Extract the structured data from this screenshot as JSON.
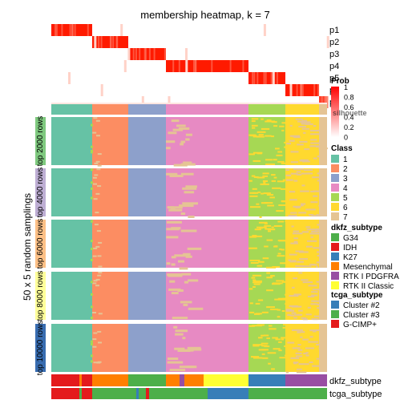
{
  "chart_data": {
    "type": "heatmap",
    "title": "membership heatmap, k = 7",
    "ylabel": "50 x 5 random samplings",
    "k": 7,
    "prob_rows": [
      "p1",
      "p2",
      "p3",
      "p4",
      "p5",
      "p6",
      "p7"
    ],
    "class_blocks": [
      {
        "cls": "1",
        "x0": 64,
        "x1": 115
      },
      {
        "cls": "2",
        "x0": 115,
        "x1": 160
      },
      {
        "cls": "3",
        "x0": 160,
        "x1": 207
      },
      {
        "cls": "4",
        "x0": 207,
        "x1": 310
      },
      {
        "cls": "5",
        "x0": 310,
        "x1": 356
      },
      {
        "cls": "6",
        "x0": 356,
        "x1": 398
      },
      {
        "cls": "7",
        "x0": 398,
        "x1": 408
      }
    ],
    "row_groups": [
      {
        "label": "top 2000 rows",
        "color": "#7FC97F"
      },
      {
        "label": "top 4000 rows",
        "color": "#BEAED4"
      },
      {
        "label": "top 6000 rows",
        "color": "#FDC086"
      },
      {
        "label": "top 8000 rows",
        "color": "#FFFF99"
      },
      {
        "label": "top 10000 rows",
        "color": "#386CB0"
      }
    ],
    "legends": {
      "prob": {
        "title": "Prob",
        "ticks": [
          "1",
          "0.8",
          "0.6",
          "0.4",
          "0.2",
          "0"
        ]
      },
      "silhouette": {
        "title": "silhouette",
        "ticks": [
          "1",
          "0.8",
          "0.6",
          "0.4",
          "0.2",
          "0"
        ]
      },
      "class": {
        "title": "Class",
        "items": [
          {
            "label": "1",
            "color": "#66C2A5"
          },
          {
            "label": "2",
            "color": "#FC8D62"
          },
          {
            "label": "3",
            "color": "#8DA0CB"
          },
          {
            "label": "4",
            "color": "#E78AC3"
          },
          {
            "label": "5",
            "color": "#A6D854"
          },
          {
            "label": "6",
            "color": "#FFD92F"
          },
          {
            "label": "7",
            "color": "#E5C494"
          }
        ]
      },
      "dkfz_subtype": {
        "title": "dkfz_subtype",
        "items": [
          {
            "label": "G34",
            "color": "#4DAF4A"
          },
          {
            "label": "IDH",
            "color": "#E41A1C"
          },
          {
            "label": "K27",
            "color": "#377EB8"
          },
          {
            "label": "Mesenchymal",
            "color": "#FF7F00"
          },
          {
            "label": "RTK I PDGFRA",
            "color": "#984EA3"
          },
          {
            "label": "RTK II Classic",
            "color": "#FFFF33"
          }
        ]
      },
      "tcga_subtype": {
        "title": "tcga_subtype",
        "items": [
          {
            "label": "Cluster #2",
            "color": "#377EB8"
          },
          {
            "label": "Cluster #3",
            "color": "#4DAF4A"
          },
          {
            "label": "G-CIMP+",
            "color": "#E41A1C"
          }
        ]
      }
    },
    "annotation_rows": [
      "dkfz_subtype",
      "tcga_subtype"
    ]
  }
}
